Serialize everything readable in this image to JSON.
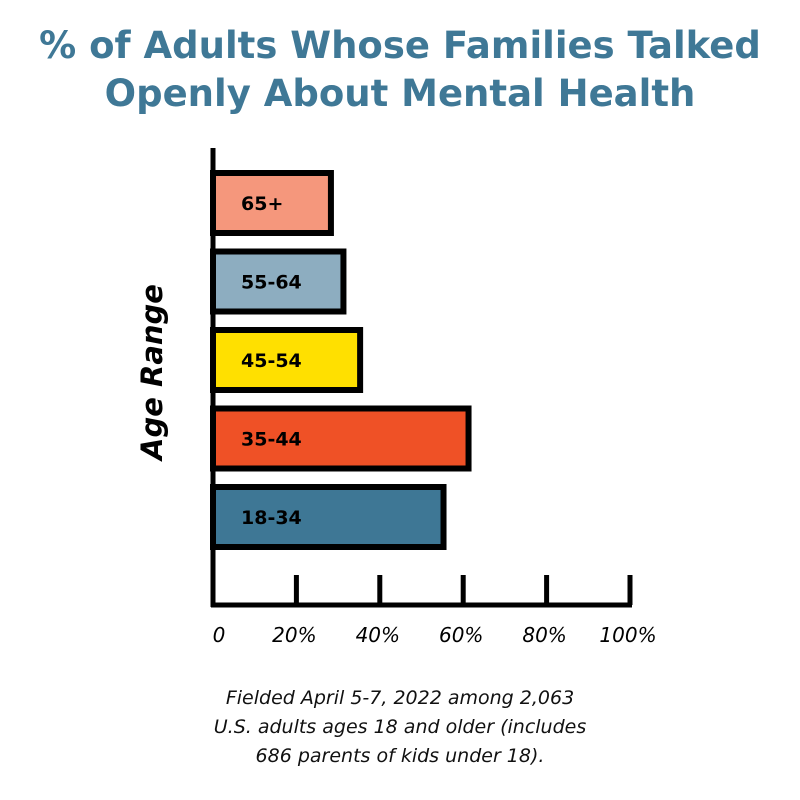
{
  "chart_data": {
    "type": "bar",
    "orientation": "horizontal",
    "title_lines": [
      "% of Adults Whose Families Talked",
      "Openly About Mental Health"
    ],
    "ylabel": "Age Range",
    "xlabel": "",
    "categories": [
      "65+",
      "55-64",
      "45-54",
      "35-44",
      "18-34"
    ],
    "values": [
      29,
      32,
      36,
      62,
      56
    ],
    "colors": [
      "#f5977c",
      "#8dadc0",
      "#ffe000",
      "#ef5126",
      "#3e7795"
    ],
    "xlim": [
      0,
      100
    ],
    "xticks": [
      "0",
      "20%",
      "40%",
      "60%",
      "80%",
      "100%"
    ],
    "grid": false,
    "title_color": "#3f7896",
    "note_lines": [
      "Fielded April 5-7, 2022 among 2,063",
      "U.S. adults ages 18 and older (includes",
      "686 parents of kids under 18)."
    ]
  }
}
